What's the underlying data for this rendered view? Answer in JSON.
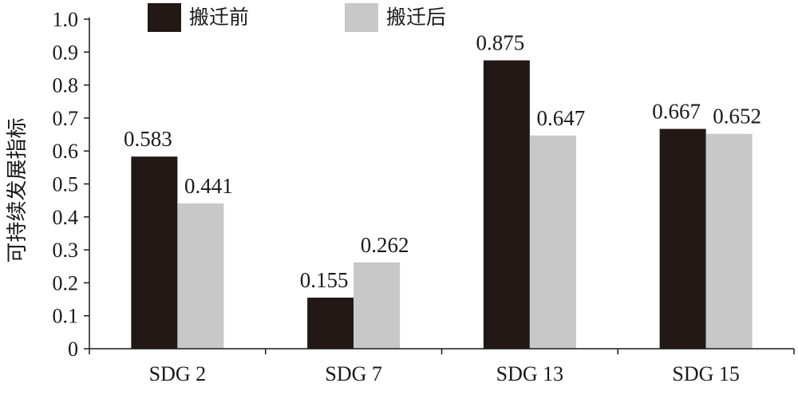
{
  "chart_data": {
    "type": "bar",
    "title": "",
    "xlabel": "",
    "ylabel": "可持续发展指标",
    "categories": [
      "SDG 2",
      "SDG 7",
      "SDG 13",
      "SDG 15"
    ],
    "series": [
      {
        "name": "搬迁前",
        "color": "#231815",
        "values": [
          0.583,
          0.155,
          0.875,
          0.667
        ],
        "labels": [
          "0.583",
          "0.155",
          "0.875",
          "0.667"
        ]
      },
      {
        "name": "搬迁后",
        "color": "#c8c8c8",
        "values": [
          0.441,
          0.262,
          0.647,
          0.652
        ],
        "labels": [
          "0.441",
          "0.262",
          "0.647",
          "0.652"
        ]
      }
    ],
    "ylim": [
      0,
      1.0
    ],
    "yticks": [
      0,
      0.1,
      0.2,
      0.3,
      0.4,
      0.5,
      0.6,
      0.7,
      0.8,
      0.9,
      1.0
    ],
    "ytick_labels": [
      "0",
      "0.1",
      "0.2",
      "0.3",
      "0.4",
      "0.5",
      "0.6",
      "0.7",
      "0.8",
      "0.9",
      "1.0"
    ],
    "grid": false,
    "legend": "top"
  }
}
